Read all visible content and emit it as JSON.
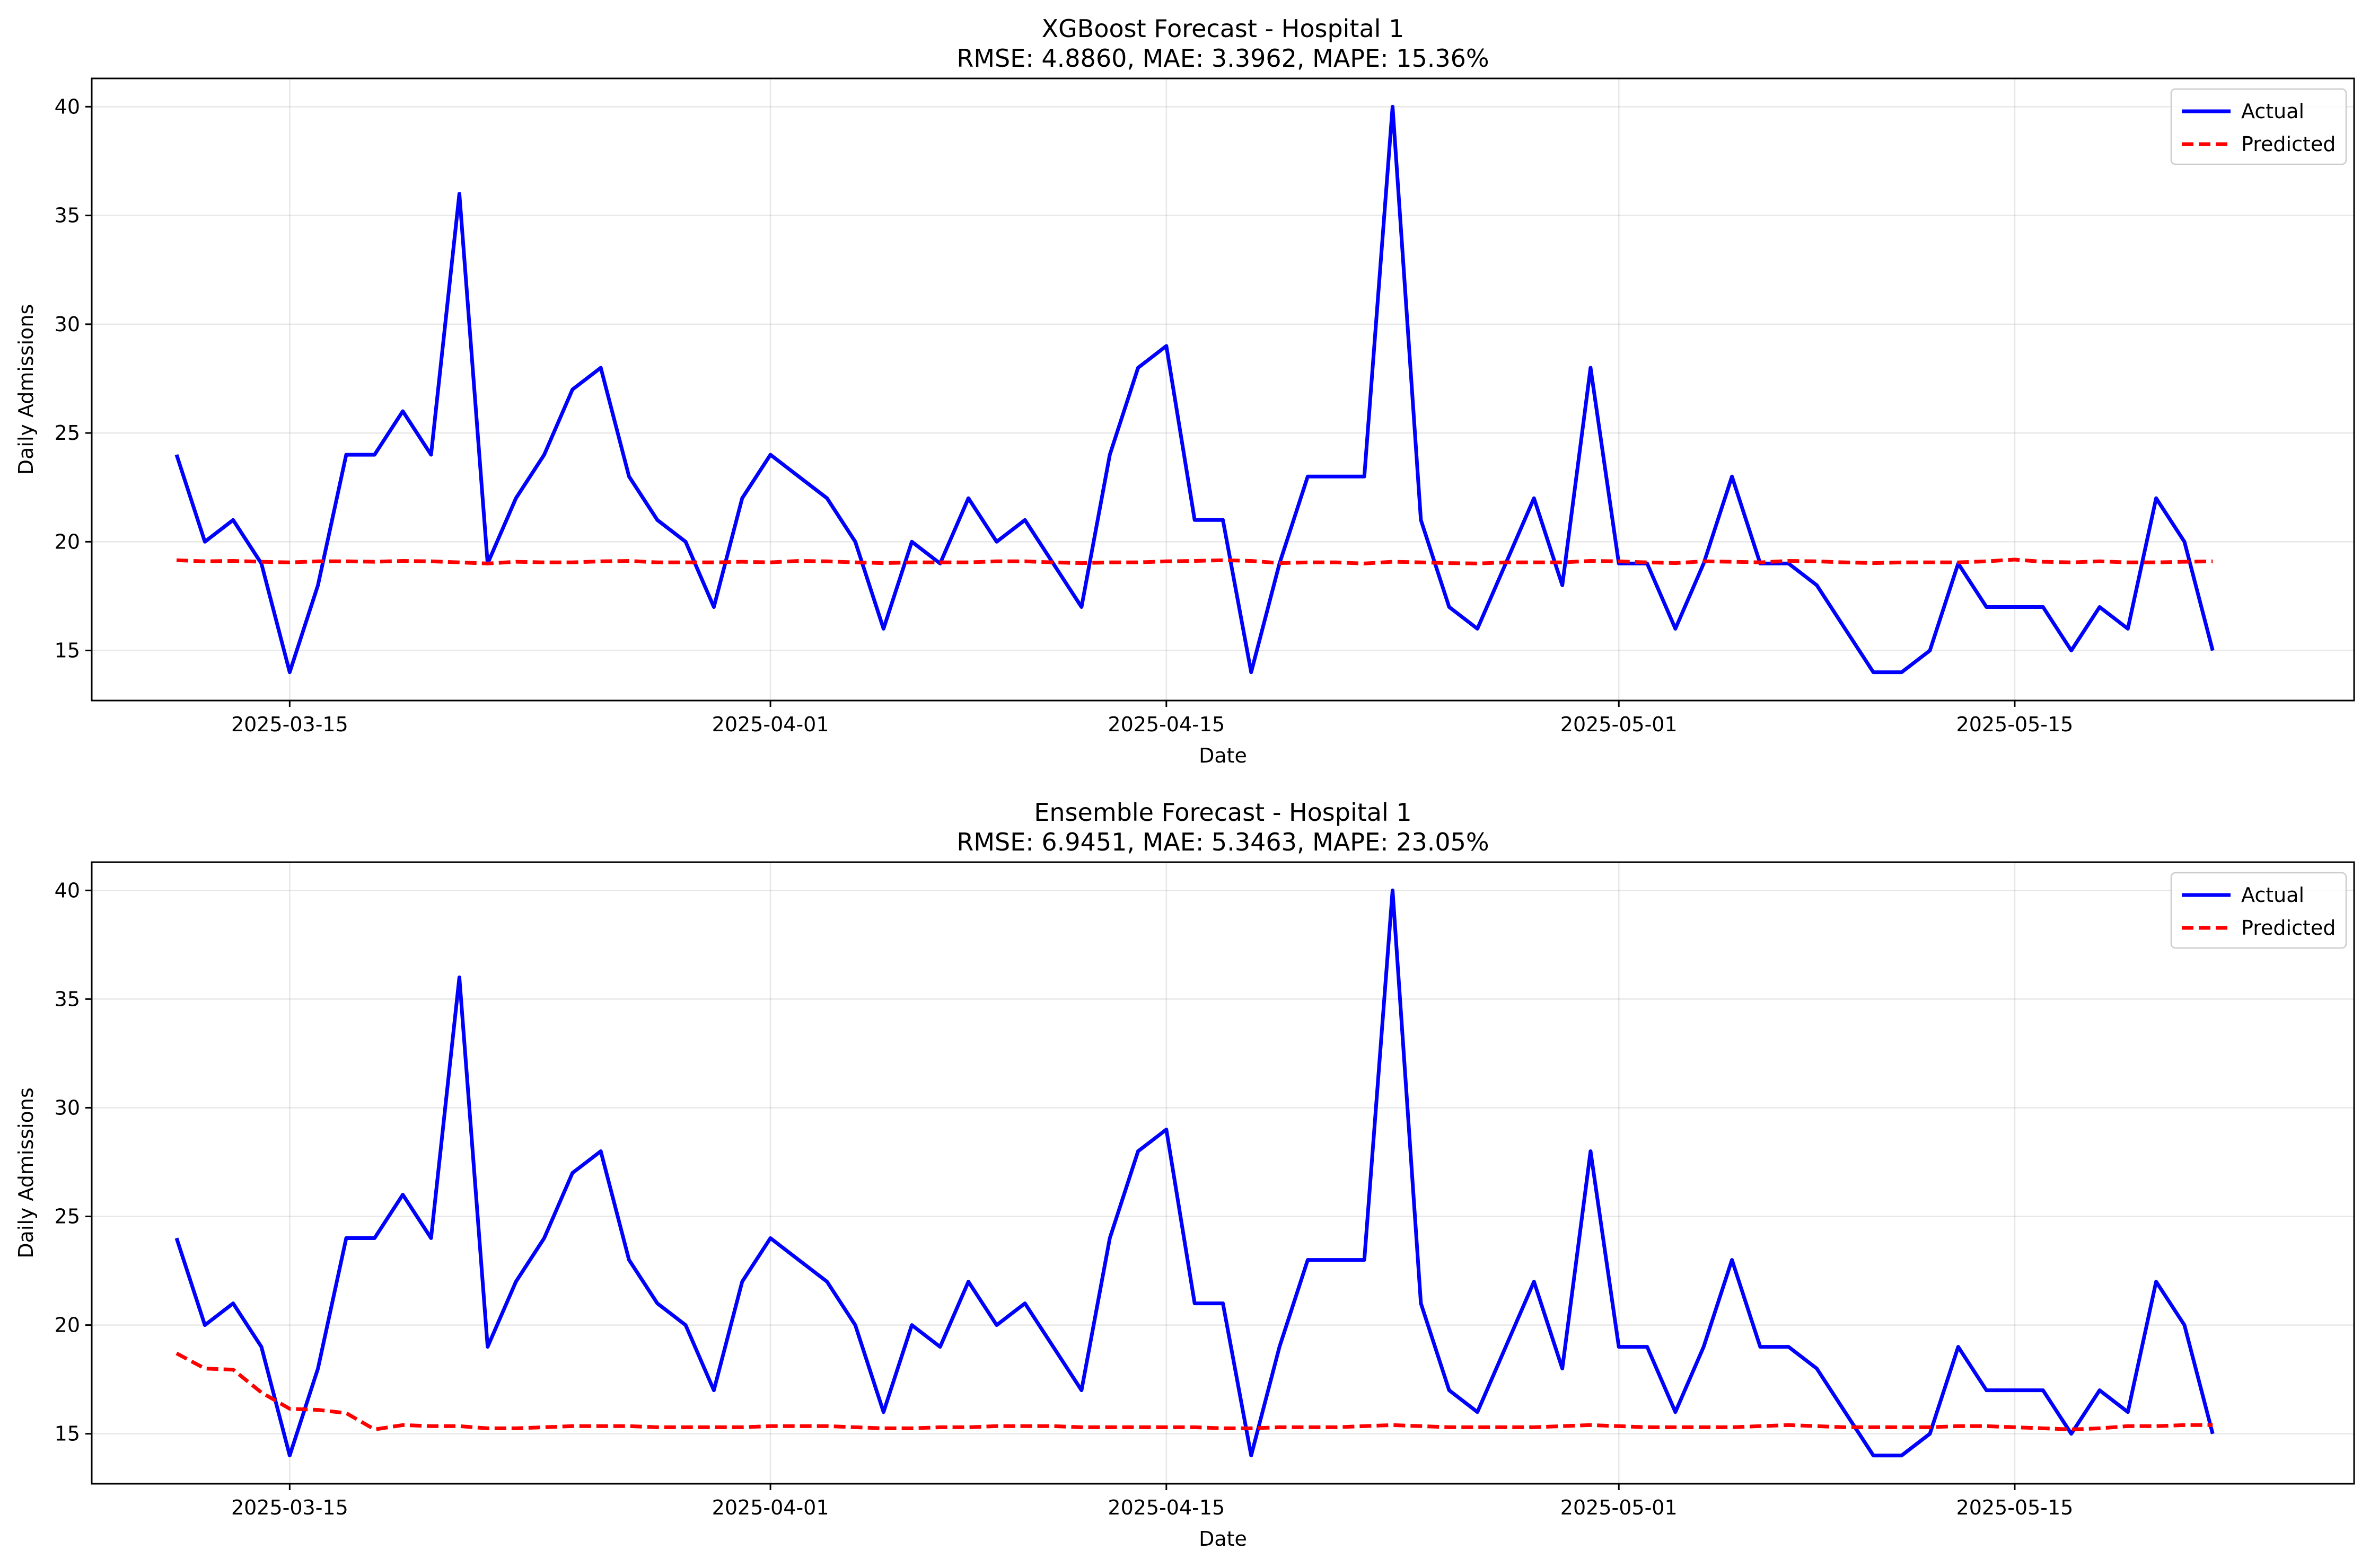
{
  "colors": {
    "actual": "#0000ff",
    "predicted": "#ff0000",
    "grid": "#b0b0b0"
  },
  "chart_data": [
    {
      "type": "line",
      "title": "XGBoost Forecast - Hospital 1",
      "subtitle": "RMSE: 4.8860, MAE: 3.3962, MAPE: 15.36%",
      "xlabel": "Date",
      "ylabel": "Daily Admissions",
      "x_start": "2025-03-11",
      "x_end": "2025-05-23",
      "xlim": [
        "2025-03-08",
        "2025-05-27"
      ],
      "ylim": [
        12.7,
        41.3
      ],
      "x_ticks": [
        "2025-03-15",
        "2025-04-01",
        "2025-04-15",
        "2025-05-01",
        "2025-05-15"
      ],
      "y_ticks": [
        15,
        20,
        25,
        30,
        35,
        40
      ],
      "grid": true,
      "legend_position": "top-right",
      "series": [
        {
          "name": "Actual",
          "style": "solid",
          "values": [
            24,
            20,
            21,
            19,
            14,
            18,
            24,
            24,
            26,
            24,
            36,
            19,
            22,
            24,
            27,
            28,
            23,
            21,
            20,
            17,
            22,
            24,
            23,
            22,
            20,
            16,
            20,
            19,
            22,
            20,
            21,
            19,
            17,
            24,
            28,
            29,
            21,
            21,
            14,
            19,
            23,
            23,
            23,
            40,
            21,
            17,
            16,
            19,
            22,
            18,
            28,
            19,
            19,
            16,
            19,
            23,
            19,
            19,
            18,
            16,
            14,
            14,
            15,
            19,
            17,
            17,
            17,
            15,
            17,
            16,
            22,
            20,
            15
          ]
        },
        {
          "name": "Predicted",
          "style": "dashed",
          "values": [
            19.15,
            19.1,
            19.12,
            19.08,
            19.05,
            19.1,
            19.1,
            19.08,
            19.12,
            19.1,
            19.05,
            19.0,
            19.08,
            19.05,
            19.05,
            19.1,
            19.12,
            19.05,
            19.05,
            19.05,
            19.08,
            19.05,
            19.12,
            19.1,
            19.05,
            19.02,
            19.05,
            19.05,
            19.05,
            19.1,
            19.1,
            19.05,
            19.02,
            19.05,
            19.05,
            19.1,
            19.12,
            19.15,
            19.12,
            19.02,
            19.05,
            19.05,
            19.0,
            19.08,
            19.05,
            19.02,
            19.0,
            19.05,
            19.05,
            19.05,
            19.12,
            19.1,
            19.05,
            19.02,
            19.1,
            19.08,
            19.05,
            19.12,
            19.1,
            19.05,
            19.02,
            19.05,
            19.05,
            19.05,
            19.1,
            19.18,
            19.08,
            19.05,
            19.1,
            19.05,
            19.05,
            19.08,
            19.1
          ]
        }
      ]
    },
    {
      "type": "line",
      "title": "Ensemble Forecast - Hospital 1",
      "subtitle": "RMSE: 6.9451, MAE: 5.3463, MAPE: 23.05%",
      "xlabel": "Date",
      "ylabel": "Daily Admissions",
      "x_start": "2025-03-11",
      "x_end": "2025-05-23",
      "xlim": [
        "2025-03-08",
        "2025-05-27"
      ],
      "ylim": [
        12.7,
        41.3
      ],
      "x_ticks": [
        "2025-03-15",
        "2025-04-01",
        "2025-04-15",
        "2025-05-01",
        "2025-05-15"
      ],
      "y_ticks": [
        15,
        20,
        25,
        30,
        35,
        40
      ],
      "grid": true,
      "legend_position": "top-right",
      "series": [
        {
          "name": "Actual",
          "style": "solid",
          "values": [
            24,
            20,
            21,
            19,
            14,
            18,
            24,
            24,
            26,
            24,
            36,
            19,
            22,
            24,
            27,
            28,
            23,
            21,
            20,
            17,
            22,
            24,
            23,
            22,
            20,
            16,
            20,
            19,
            22,
            20,
            21,
            19,
            17,
            24,
            28,
            29,
            21,
            21,
            14,
            19,
            23,
            23,
            23,
            40,
            21,
            17,
            16,
            19,
            22,
            18,
            28,
            19,
            19,
            16,
            19,
            23,
            19,
            19,
            18,
            16,
            14,
            14,
            15,
            19,
            17,
            17,
            17,
            15,
            17,
            16,
            22,
            20,
            15
          ]
        },
        {
          "name": "Predicted",
          "style": "dashed",
          "values": [
            18.7,
            18.0,
            17.95,
            16.9,
            16.15,
            16.1,
            15.95,
            15.2,
            15.4,
            15.35,
            15.35,
            15.25,
            15.25,
            15.3,
            15.35,
            15.35,
            15.35,
            15.3,
            15.3,
            15.3,
            15.3,
            15.35,
            15.35,
            15.35,
            15.3,
            15.25,
            15.25,
            15.3,
            15.3,
            15.35,
            15.35,
            15.35,
            15.3,
            15.3,
            15.3,
            15.3,
            15.3,
            15.25,
            15.25,
            15.3,
            15.3,
            15.3,
            15.35,
            15.4,
            15.35,
            15.3,
            15.3,
            15.3,
            15.3,
            15.35,
            15.4,
            15.35,
            15.3,
            15.3,
            15.3,
            15.3,
            15.35,
            15.4,
            15.35,
            15.3,
            15.3,
            15.3,
            15.3,
            15.35,
            15.35,
            15.3,
            15.25,
            15.2,
            15.25,
            15.35,
            15.35,
            15.4,
            15.4
          ]
        }
      ]
    }
  ]
}
